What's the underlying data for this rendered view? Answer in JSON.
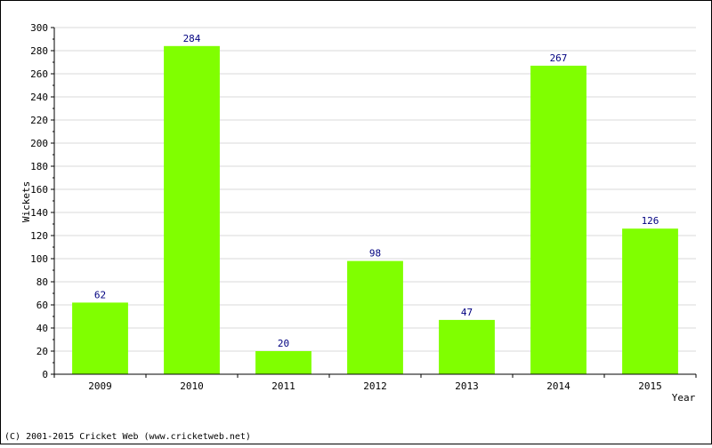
{
  "chart_data": {
    "type": "bar",
    "categories": [
      "2009",
      "2010",
      "2011",
      "2012",
      "2013",
      "2014",
      "2015"
    ],
    "values": [
      62,
      284,
      20,
      98,
      47,
      267,
      126
    ],
    "data_labels": [
      "62",
      "284",
      "20",
      "98",
      "47",
      "267",
      "126"
    ],
    "title": "",
    "xlabel": "Year",
    "ylabel": "Wickets",
    "ylim": [
      0,
      300
    ],
    "y_ticks": [
      "0",
      "20",
      "40",
      "60",
      "80",
      "100",
      "120",
      "140",
      "160",
      "180",
      "200",
      "220",
      "240",
      "260",
      "280",
      "300"
    ],
    "grid": true,
    "legend": "none",
    "colors": {
      "bar": "#80ff00",
      "data_label": "#000080",
      "grid": "#d8d8d8"
    }
  },
  "footer": {
    "copyright": "(C) 2001-2015 Cricket Web (www.cricketweb.net)"
  }
}
